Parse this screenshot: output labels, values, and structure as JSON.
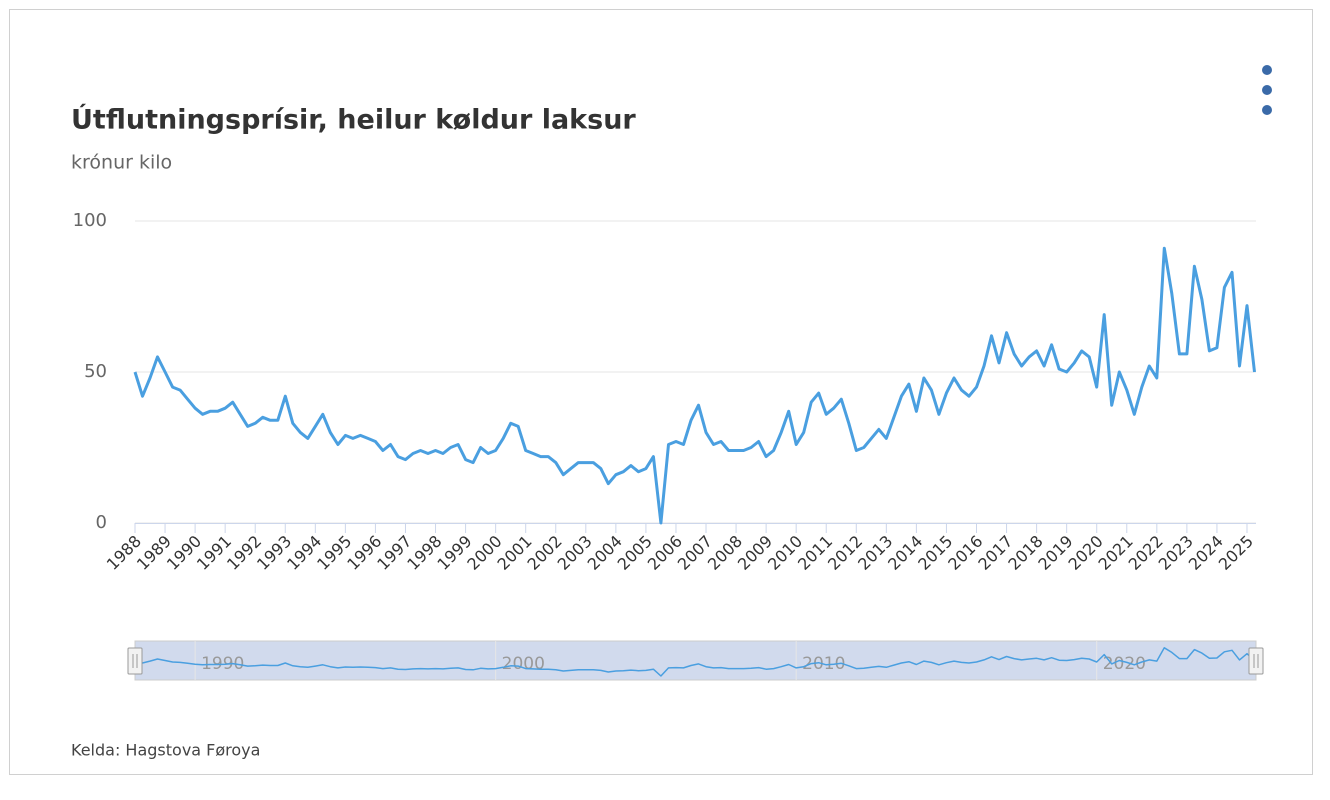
{
  "chart_data": {
    "type": "line",
    "title": "Útflutningsprísir, heilur køldur laksur",
    "subtitle": "krónur kilo",
    "source": "Kelda: Hagstova Føroya",
    "x": [
      1988,
      1988.25,
      1988.5,
      1988.75,
      1989,
      1989.25,
      1989.5,
      1989.75,
      1990,
      1990.25,
      1990.5,
      1990.75,
      1991,
      1991.25,
      1991.5,
      1991.75,
      1992,
      1992.25,
      1992.5,
      1992.75,
      1993,
      1993.25,
      1993.5,
      1993.75,
      1994,
      1994.25,
      1994.5,
      1994.75,
      1995,
      1995.25,
      1995.5,
      1995.75,
      1996,
      1996.25,
      1996.5,
      1996.75,
      1997,
      1997.25,
      1997.5,
      1997.75,
      1998,
      1998.25,
      1998.5,
      1998.75,
      1999,
      1999.25,
      1999.5,
      1999.75,
      2000,
      2000.25,
      2000.5,
      2000.75,
      2001,
      2001.25,
      2001.5,
      2001.75,
      2002,
      2002.25,
      2002.5,
      2002.75,
      2003,
      2003.25,
      2003.5,
      2003.75,
      2004,
      2004.25,
      2004.5,
      2004.75,
      2005,
      2005.25,
      2005.5,
      2005.75,
      2006,
      2006.25,
      2006.5,
      2006.75,
      2007,
      2007.25,
      2007.5,
      2007.75,
      2008,
      2008.25,
      2008.5,
      2008.75,
      2009,
      2009.25,
      2009.5,
      2009.75,
      2010,
      2010.25,
      2010.5,
      2010.75,
      2011,
      2011.25,
      2011.5,
      2011.75,
      2012,
      2012.25,
      2012.5,
      2012.75,
      2013,
      2013.25,
      2013.5,
      2013.75,
      2014,
      2014.25,
      2014.5,
      2014.75,
      2015,
      2015.25,
      2015.5,
      2015.75,
      2016,
      2016.25,
      2016.5,
      2016.75,
      2017,
      2017.25,
      2017.5,
      2017.75,
      2018,
      2018.25,
      2018.5,
      2018.75,
      2019,
      2019.25,
      2019.5,
      2019.75,
      2020,
      2020.25,
      2020.5,
      2020.75,
      2021,
      2021.25,
      2021.5,
      2021.75,
      2022,
      2022.25,
      2022.5,
      2022.75,
      2023,
      2023.25,
      2023.5,
      2023.75,
      2024,
      2024.25,
      2024.5,
      2024.75,
      2025,
      2025.25
    ],
    "series": [
      {
        "name": "krónur kilo",
        "color": "#4a9fe0",
        "values": [
          50,
          42,
          48,
          55,
          50,
          45,
          44,
          41,
          38,
          36,
          37,
          37,
          38,
          40,
          36,
          32,
          33,
          35,
          34,
          34,
          42,
          33,
          30,
          28,
          32,
          36,
          30,
          26,
          29,
          28,
          29,
          28,
          27,
          24,
          26,
          22,
          21,
          23,
          24,
          23,
          24,
          23,
          25,
          26,
          21,
          20,
          25,
          23,
          24,
          28,
          33,
          32,
          24,
          23,
          22,
          22,
          20,
          16,
          18,
          20,
          20,
          20,
          18,
          13,
          16,
          17,
          19,
          17,
          18,
          22,
          0,
          26,
          27,
          26,
          34,
          39,
          30,
          26,
          27,
          24,
          24,
          24,
          25,
          27,
          22,
          24,
          30,
          37,
          26,
          30,
          40,
          43,
          36,
          38,
          41,
          33,
          24,
          25,
          28,
          31,
          28,
          35,
          42,
          46,
          37,
          48,
          44,
          36,
          43,
          48,
          44,
          42,
          45,
          52,
          62,
          53,
          63,
          56,
          52,
          55,
          57,
          52,
          59,
          51,
          50,
          53,
          57,
          55,
          45,
          69,
          39,
          50,
          44,
          36,
          45,
          52,
          48,
          91,
          76,
          56,
          56,
          85,
          74,
          57,
          58,
          78,
          83,
          52,
          72,
          50
        ]
      }
    ],
    "xlim": [
      1988,
      2025.3
    ],
    "xticks": [
      1988,
      1989,
      1990,
      1991,
      1992,
      1993,
      1994,
      1995,
      1996,
      1997,
      1998,
      1999,
      2000,
      2001,
      2002,
      2003,
      2004,
      2005,
      2006,
      2007,
      2008,
      2009,
      2010,
      2011,
      2012,
      2013,
      2014,
      2015,
      2016,
      2017,
      2018,
      2019,
      2020,
      2021,
      2022,
      2023,
      2024,
      2025
    ],
    "ylim": [
      0,
      100
    ],
    "yticks": [
      0,
      50,
      100
    ],
    "grid": true,
    "navigator": {
      "xticks": [
        1990,
        2000,
        2010,
        2020
      ]
    }
  }
}
